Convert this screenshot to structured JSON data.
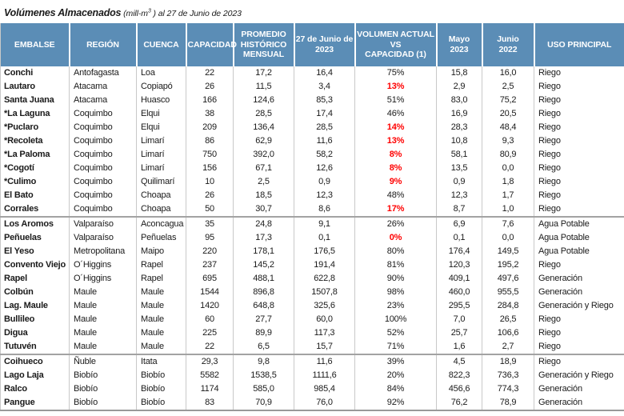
{
  "title": {
    "main": "Volúmenes Almacenados",
    "unit_prefix": " (mill-m",
    "unit_sup": "3",
    "unit_suffix": " ) al 27 de Junio de 2023"
  },
  "colors": {
    "header_bg": "#5B8DB6",
    "header_text": "#FFFFFF",
    "alert_red": "#FF0000",
    "grid_line": "#C9C9C9",
    "group_separator": "#A3A3A3"
  },
  "table": {
    "columns": [
      {
        "id": "embalse",
        "lines": [
          "EMBALSE"
        ]
      },
      {
        "id": "region",
        "lines": [
          "REGIÓN"
        ]
      },
      {
        "id": "cuenca",
        "lines": [
          "CUENCA"
        ]
      },
      {
        "id": "capacidad",
        "lines": [
          "CAPACIDAD"
        ]
      },
      {
        "id": "promedio-historico-mensual",
        "lines": [
          "PROMEDIO",
          "HISTÓRICO",
          "MENSUAL"
        ]
      },
      {
        "id": "27-junio-2023",
        "lines": [
          "27 de Junio de",
          "2023"
        ]
      },
      {
        "id": "volumen-actual-vs-capacidad",
        "lines": [
          "VOLUMEN ACTUAL",
          "VS",
          "CAPACIDAD (1)"
        ]
      },
      {
        "id": "mayo-2023",
        "lines": [
          "Mayo",
          "2023"
        ]
      },
      {
        "id": "junio-2022",
        "lines": [
          "Junio",
          "2022"
        ]
      },
      {
        "id": "uso-principal",
        "lines": [
          "USO PRINCIPAL"
        ]
      }
    ],
    "rows": [
      {
        "embalse": "Conchi",
        "region": "Antofagasta",
        "cuenca": "Loa",
        "capacidad": "22",
        "promedio": "17,2",
        "junio2023": "16,4",
        "pct": "75%",
        "pct_red": false,
        "mayo2023": "15,8",
        "junio2022": "16,0",
        "uso": "Riego",
        "sep": false
      },
      {
        "embalse": "Lautaro",
        "region": "Atacama",
        "cuenca": "Copiapó",
        "capacidad": "26",
        "promedio": "11,5",
        "junio2023": "3,4",
        "pct": "13%",
        "pct_red": true,
        "mayo2023": "2,9",
        "junio2022": "2,5",
        "uso": "Riego",
        "sep": false
      },
      {
        "embalse": "Santa Juana",
        "region": "Atacama",
        "cuenca": "Huasco",
        "capacidad": "166",
        "promedio": "124,6",
        "junio2023": "85,3",
        "pct": "51%",
        "pct_red": false,
        "mayo2023": "83,0",
        "junio2022": "75,2",
        "uso": "Riego",
        "sep": false
      },
      {
        "embalse": "*La Laguna",
        "region": "Coquimbo",
        "cuenca": "Elqui",
        "capacidad": "38",
        "promedio": "28,5",
        "junio2023": "17,4",
        "pct": "46%",
        "pct_red": false,
        "mayo2023": "16,9",
        "junio2022": "20,5",
        "uso": "Riego",
        "sep": false
      },
      {
        "embalse": "*Puclaro",
        "region": "Coquimbo",
        "cuenca": "Elqui",
        "capacidad": "209",
        "promedio": "136,4",
        "junio2023": "28,5",
        "pct": "14%",
        "pct_red": true,
        "mayo2023": "28,3",
        "junio2022": "48,4",
        "uso": "Riego",
        "sep": false
      },
      {
        "embalse": "*Recoleta",
        "region": "Coquimbo",
        "cuenca": "Limarí",
        "capacidad": "86",
        "promedio": "62,9",
        "junio2023": "11,6",
        "pct": "13%",
        "pct_red": true,
        "mayo2023": "10,8",
        "junio2022": "9,3",
        "uso": "Riego",
        "sep": false
      },
      {
        "embalse": "*La Paloma",
        "region": "Coquimbo",
        "cuenca": "Limarí",
        "capacidad": "750",
        "promedio": "392,0",
        "junio2023": "58,2",
        "pct": "8%",
        "pct_red": true,
        "mayo2023": "58,1",
        "junio2022": "80,9",
        "uso": "Riego",
        "sep": false
      },
      {
        "embalse": "*Cogotí",
        "region": "Coquimbo",
        "cuenca": "Limarí",
        "capacidad": "156",
        "promedio": "67,1",
        "junio2023": "12,6",
        "pct": "8%",
        "pct_red": true,
        "mayo2023": "13,5",
        "junio2022": "0,0",
        "uso": "Riego",
        "sep": false
      },
      {
        "embalse": "*Culimo",
        "region": "Coquimbo",
        "cuenca": "Quilimarí",
        "capacidad": "10",
        "promedio": "2,5",
        "junio2023": "0,9",
        "pct": "9%",
        "pct_red": true,
        "mayo2023": "0,9",
        "junio2022": "1,8",
        "uso": "Riego",
        "sep": false
      },
      {
        "embalse": "El Bato",
        "region": "Coquimbo",
        "cuenca": "Choapa",
        "capacidad": "26",
        "promedio": "18,5",
        "junio2023": "12,3",
        "pct": "48%",
        "pct_red": false,
        "mayo2023": "12,3",
        "junio2022": "1,7",
        "uso": "Riego",
        "sep": false
      },
      {
        "embalse": "Corrales",
        "region": "Coquimbo",
        "cuenca": "Choapa",
        "capacidad": "50",
        "promedio": "30,7",
        "junio2023": "8,6",
        "pct": "17%",
        "pct_red": true,
        "mayo2023": "8,7",
        "junio2022": "1,0",
        "uso": "Riego",
        "sep": false
      },
      {
        "embalse": "Los Aromos",
        "region": "Valparaíso",
        "cuenca": "Aconcagua",
        "capacidad": "35",
        "promedio": "24,8",
        "junio2023": "9,1",
        "pct": "26%",
        "pct_red": false,
        "mayo2023": "6,9",
        "junio2022": "7,6",
        "uso": "Agua Potable",
        "sep": true
      },
      {
        "embalse": "Peñuelas",
        "region": "Valparaíso",
        "cuenca": "Peñuelas",
        "capacidad": "95",
        "promedio": "17,3",
        "junio2023": "0,1",
        "pct": "0%",
        "pct_red": true,
        "mayo2023": "0,1",
        "junio2022": "0,0",
        "uso": "Agua Potable",
        "sep": false
      },
      {
        "embalse": "El Yeso",
        "region": "Metropolitana",
        "cuenca": "Maipo",
        "capacidad": "220",
        "promedio": "178,1",
        "junio2023": "176,5",
        "pct": "80%",
        "pct_red": false,
        "mayo2023": "176,4",
        "junio2022": "149,5",
        "uso": "Agua Potable",
        "sep": false
      },
      {
        "embalse": "Convento Viejo",
        "region": "O´Higgins",
        "cuenca": "Rapel",
        "capacidad": "237",
        "promedio": "145,2",
        "junio2023": "191,4",
        "pct": "81%",
        "pct_red": false,
        "mayo2023": "120,3",
        "junio2022": "195,2",
        "uso": "Riego",
        "sep": false
      },
      {
        "embalse": "Rapel",
        "region": "O´Higgins",
        "cuenca": "Rapel",
        "capacidad": "695",
        "promedio": "488,1",
        "junio2023": "622,8",
        "pct": "90%",
        "pct_red": false,
        "mayo2023": "409,1",
        "junio2022": "497,6",
        "uso": "Generación",
        "sep": false
      },
      {
        "embalse": "Colbún",
        "region": "Maule",
        "cuenca": "Maule",
        "capacidad": "1544",
        "promedio": "896,8",
        "junio2023": "1507,8",
        "pct": "98%",
        "pct_red": false,
        "mayo2023": "460,0",
        "junio2022": "955,5",
        "uso": "Generación",
        "sep": false
      },
      {
        "embalse": "Lag. Maule",
        "region": "Maule",
        "cuenca": "Maule",
        "capacidad": "1420",
        "promedio": "648,8",
        "junio2023": "325,6",
        "pct": "23%",
        "pct_red": false,
        "mayo2023": "295,5",
        "junio2022": "284,8",
        "uso": "Generación y Riego",
        "sep": false
      },
      {
        "embalse": "Bullileo",
        "region": "Maule",
        "cuenca": "Maule",
        "capacidad": "60",
        "promedio": "27,7",
        "junio2023": "60,0",
        "pct": "100%",
        "pct_red": false,
        "mayo2023": "7,0",
        "junio2022": "26,5",
        "uso": "Riego",
        "sep": false
      },
      {
        "embalse": "Digua",
        "region": "Maule",
        "cuenca": "Maule",
        "capacidad": "225",
        "promedio": "89,9",
        "junio2023": "117,3",
        "pct": "52%",
        "pct_red": false,
        "mayo2023": "25,7",
        "junio2022": "106,6",
        "uso": "Riego",
        "sep": false
      },
      {
        "embalse": "Tutuvén",
        "region": "Maule",
        "cuenca": "Maule",
        "capacidad": "22",
        "promedio": "6,5",
        "junio2023": "15,7",
        "pct": "71%",
        "pct_red": false,
        "mayo2023": "1,6",
        "junio2022": "2,7",
        "uso": "Riego",
        "sep": false
      },
      {
        "embalse": "Coihueco",
        "region": "Ñuble",
        "cuenca": "Itata",
        "capacidad": "29,3",
        "promedio": "9,8",
        "junio2023": "11,6",
        "pct": "39%",
        "pct_red": false,
        "mayo2023": "4,5",
        "junio2022": "18,9",
        "uso": "Riego",
        "sep": true
      },
      {
        "embalse": "Lago Laja",
        "region": "Biobío",
        "cuenca": "Biobío",
        "capacidad": "5582",
        "promedio": "1538,5",
        "junio2023": "1111,6",
        "pct": "20%",
        "pct_red": false,
        "mayo2023": "822,3",
        "junio2022": "736,3",
        "uso": "Generación y Riego",
        "sep": false
      },
      {
        "embalse": "Ralco",
        "region": "Biobío",
        "cuenca": "Biobío",
        "capacidad": "1174",
        "promedio": "585,0",
        "junio2023": "985,4",
        "pct": "84%",
        "pct_red": false,
        "mayo2023": "456,6",
        "junio2022": "774,3",
        "uso": "Generación",
        "sep": false
      },
      {
        "embalse": "Pangue",
        "region": "Biobío",
        "cuenca": "Biobío",
        "capacidad": "83",
        "promedio": "70,9",
        "junio2023": "76,0",
        "pct": "92%",
        "pct_red": false,
        "mayo2023": "76,2",
        "junio2022": "78,9",
        "uso": "Generación",
        "sep": false
      }
    ]
  }
}
